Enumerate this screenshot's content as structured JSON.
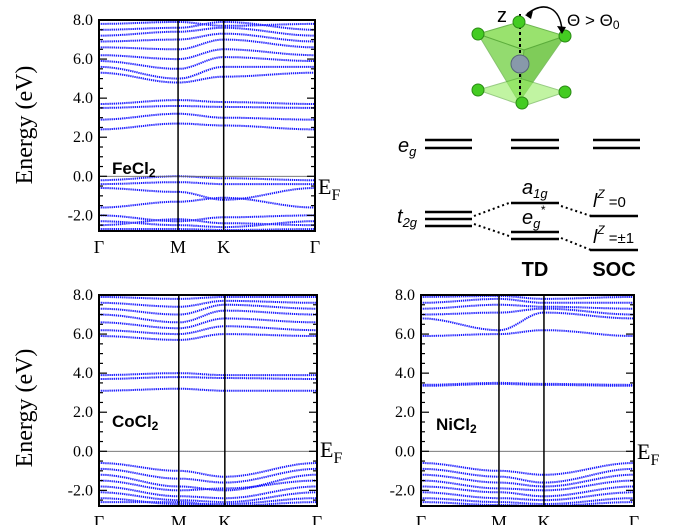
{
  "ylabel": "Energy (eV)",
  "fermi_label": "E",
  "fermi_sub": "F",
  "kpath": [
    "Γ",
    "M",
    "K",
    "Γ"
  ],
  "ytick_labels": [
    "8.0",
    "6.0",
    "4.0",
    "2.0",
    "0.0",
    "-2.0"
  ],
  "colors": {
    "bands": "#1a1aff",
    "axis": "#000000",
    "atom_cl": "#44cc22",
    "atom_metal": "#8899aa"
  },
  "diagram": {
    "theta_label": "Θ > Θ",
    "theta_sub": "0",
    "z_label": "z",
    "eg_main": "e",
    "eg_sub": "g",
    "t2g_main": "t",
    "t2g_sub": "2g",
    "a1g_main": "a",
    "a1g_sub": "1g",
    "egstar_main": "e",
    "egstar_sub": "g",
    "egstar_sup": "*",
    "lz0_main": "l",
    "lz0_sup": "Z",
    "lz0_rest": " =0",
    "lz1_main": "l",
    "lz1_sup": "Z",
    "lz1_rest": " =±1",
    "td_label": "TD",
    "soc_label": "SOC"
  },
  "chart_data": [
    {
      "type": "line",
      "compound_main": "FeCl",
      "compound_sub": "2",
      "ylim": [
        -2.8,
        8.0
      ],
      "x_ticks": [
        0,
        1,
        1.577,
        2.732
      ],
      "bands": [
        [
          7.8,
          7.9,
          7.7,
          7.8
        ],
        [
          7.5,
          7.6,
          7.9,
          7.5
        ],
        [
          7.2,
          7.4,
          7.6,
          7.2
        ],
        [
          6.9,
          7.0,
          7.3,
          6.9
        ],
        [
          6.6,
          6.5,
          7.0,
          6.6
        ],
        [
          6.2,
          6.0,
          6.5,
          6.2
        ],
        [
          5.9,
          5.5,
          6.1,
          5.9
        ],
        [
          5.6,
          5.0,
          5.6,
          5.6
        ],
        [
          5.3,
          4.8,
          5.1,
          5.3
        ],
        [
          3.7,
          3.9,
          3.8,
          3.7
        ],
        [
          3.5,
          3.6,
          3.55,
          3.5
        ],
        [
          2.9,
          3.2,
          3.0,
          2.9
        ],
        [
          2.4,
          2.7,
          2.6,
          2.4
        ],
        [
          -0.2,
          0.0,
          -0.1,
          -0.2
        ],
        [
          -0.4,
          -0.3,
          -0.4,
          -0.4
        ],
        [
          -0.6,
          -0.8,
          -1.2,
          -0.6
        ],
        [
          -1.6,
          -1.3,
          -1.1,
          -1.6
        ],
        [
          -2.0,
          -2.3,
          -2.1,
          -2.0
        ],
        [
          -2.3,
          -2.5,
          -2.6,
          -2.3
        ],
        [
          -2.5,
          -2.2,
          -2.4,
          -2.5
        ],
        [
          -2.7,
          -2.7,
          -2.75,
          -2.7
        ]
      ]
    },
    {
      "type": "line",
      "compound_main": "CoCl",
      "compound_sub": "2",
      "ylim": [
        -2.8,
        8.0
      ],
      "x_ticks": [
        0,
        1,
        1.577,
        2.732
      ],
      "bands": [
        [
          7.9,
          7.8,
          7.9,
          7.9
        ],
        [
          7.6,
          7.4,
          7.7,
          7.6
        ],
        [
          7.3,
          7.0,
          7.5,
          7.3
        ],
        [
          7.0,
          6.6,
          7.2,
          7.0
        ],
        [
          6.6,
          6.3,
          6.8,
          6.6
        ],
        [
          6.2,
          6.0,
          6.4,
          6.2
        ],
        [
          5.9,
          5.7,
          6.0,
          5.9
        ],
        [
          3.9,
          4.0,
          3.9,
          3.9
        ],
        [
          3.7,
          3.8,
          3.75,
          3.7
        ],
        [
          3.1,
          3.2,
          3.1,
          3.1
        ],
        [
          -0.6,
          -1.0,
          -1.3,
          -0.6
        ],
        [
          -0.9,
          -1.4,
          -1.6,
          -0.9
        ],
        [
          -1.2,
          -1.8,
          -2.0,
          -1.2
        ],
        [
          -1.5,
          -2.0,
          -1.9,
          -1.5
        ],
        [
          -1.8,
          -2.3,
          -2.4,
          -1.8
        ],
        [
          -2.1,
          -2.5,
          -2.6,
          -2.1
        ],
        [
          -2.4,
          -2.7,
          -2.7,
          -2.4
        ],
        [
          -2.6,
          -2.6,
          -2.8,
          -2.6
        ]
      ]
    },
    {
      "type": "line",
      "compound_main": "NiCl",
      "compound_sub": "2",
      "ylim": [
        -2.8,
        8.0
      ],
      "x_ticks": [
        0,
        1,
        1.577,
        2.732
      ],
      "bands": [
        [
          7.9,
          7.95,
          7.8,
          7.9
        ],
        [
          7.6,
          7.8,
          7.6,
          7.6
        ],
        [
          7.3,
          7.5,
          7.4,
          7.3
        ],
        [
          7.0,
          7.1,
          7.3,
          7.0
        ],
        [
          6.8,
          6.2,
          7.1,
          6.8
        ],
        [
          5.9,
          6.0,
          6.2,
          5.9
        ],
        [
          3.4,
          3.5,
          3.45,
          3.4
        ],
        [
          3.35,
          3.45,
          3.4,
          3.35
        ],
        [
          -0.6,
          -1.0,
          -1.2,
          -0.6
        ],
        [
          -0.9,
          -1.3,
          -1.6,
          -0.9
        ],
        [
          -1.2,
          -1.6,
          -1.8,
          -1.2
        ],
        [
          -1.5,
          -1.9,
          -2.0,
          -1.5
        ],
        [
          -1.8,
          -2.1,
          -2.3,
          -1.8
        ],
        [
          -2.1,
          -2.4,
          -2.5,
          -2.1
        ],
        [
          -2.4,
          -2.6,
          -2.7,
          -2.4
        ],
        [
          -2.6,
          -2.75,
          -2.8,
          -2.6
        ]
      ]
    }
  ]
}
